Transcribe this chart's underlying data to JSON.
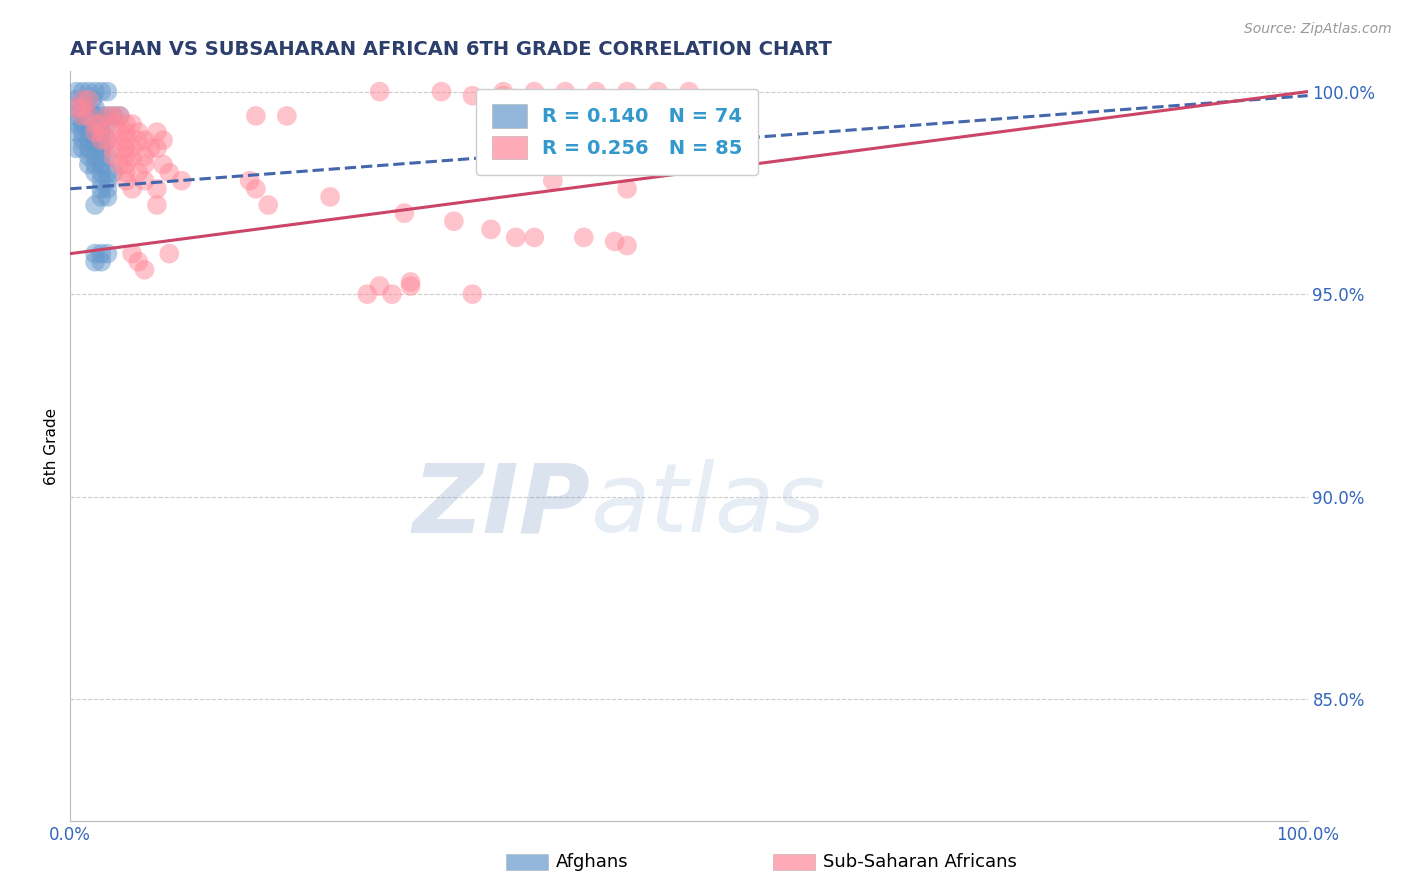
{
  "title": "AFGHAN VS SUBSAHARAN AFRICAN 6TH GRADE CORRELATION CHART",
  "source": "Source: ZipAtlas.com",
  "ylabel": "6th Grade",
  "legend_blue": {
    "R": 0.14,
    "N": 74,
    "label": "Afghans"
  },
  "legend_pink": {
    "R": 0.256,
    "N": 85,
    "label": "Sub-Saharan Africans"
  },
  "ytick_labels": [
    "85.0%",
    "90.0%",
    "95.0%",
    "100.0%"
  ],
  "ytick_positions": [
    0.85,
    0.9,
    0.95,
    1.0
  ],
  "xlim": [
    0.0,
    1.0
  ],
  "ylim": [
    0.82,
    1.005
  ],
  "blue_scatter": [
    [
      0.005,
      1.0
    ],
    [
      0.01,
      1.0
    ],
    [
      0.015,
      1.0
    ],
    [
      0.02,
      1.0
    ],
    [
      0.025,
      1.0
    ],
    [
      0.03,
      1.0
    ],
    [
      0.005,
      0.998
    ],
    [
      0.01,
      0.998
    ],
    [
      0.018,
      0.998
    ],
    [
      0.005,
      0.996
    ],
    [
      0.01,
      0.996
    ],
    [
      0.015,
      0.996
    ],
    [
      0.02,
      0.996
    ],
    [
      0.005,
      0.994
    ],
    [
      0.01,
      0.994
    ],
    [
      0.015,
      0.994
    ],
    [
      0.02,
      0.994
    ],
    [
      0.025,
      0.994
    ],
    [
      0.03,
      0.994
    ],
    [
      0.035,
      0.994
    ],
    [
      0.04,
      0.994
    ],
    [
      0.005,
      0.992
    ],
    [
      0.01,
      0.992
    ],
    [
      0.015,
      0.992
    ],
    [
      0.02,
      0.992
    ],
    [
      0.025,
      0.992
    ],
    [
      0.03,
      0.992
    ],
    [
      0.005,
      0.99
    ],
    [
      0.01,
      0.99
    ],
    [
      0.015,
      0.99
    ],
    [
      0.02,
      0.99
    ],
    [
      0.025,
      0.99
    ],
    [
      0.01,
      0.988
    ],
    [
      0.015,
      0.988
    ],
    [
      0.02,
      0.988
    ],
    [
      0.025,
      0.988
    ],
    [
      0.03,
      0.988
    ],
    [
      0.005,
      0.986
    ],
    [
      0.01,
      0.986
    ],
    [
      0.015,
      0.986
    ],
    [
      0.02,
      0.986
    ],
    [
      0.025,
      0.986
    ],
    [
      0.015,
      0.984
    ],
    [
      0.02,
      0.984
    ],
    [
      0.025,
      0.984
    ],
    [
      0.03,
      0.984
    ],
    [
      0.015,
      0.982
    ],
    [
      0.02,
      0.982
    ],
    [
      0.025,
      0.982
    ],
    [
      0.02,
      0.98
    ],
    [
      0.025,
      0.98
    ],
    [
      0.03,
      0.98
    ],
    [
      0.035,
      0.98
    ],
    [
      0.025,
      0.978
    ],
    [
      0.03,
      0.978
    ],
    [
      0.025,
      0.976
    ],
    [
      0.03,
      0.976
    ],
    [
      0.025,
      0.974
    ],
    [
      0.03,
      0.974
    ],
    [
      0.02,
      0.972
    ],
    [
      0.02,
      0.96
    ],
    [
      0.025,
      0.96
    ],
    [
      0.03,
      0.96
    ],
    [
      0.02,
      0.958
    ],
    [
      0.025,
      0.958
    ]
  ],
  "pink_scatter": [
    [
      0.01,
      0.998
    ],
    [
      0.015,
      0.998
    ],
    [
      0.005,
      0.996
    ],
    [
      0.01,
      0.996
    ],
    [
      0.01,
      0.994
    ],
    [
      0.015,
      0.994
    ],
    [
      0.03,
      0.994
    ],
    [
      0.035,
      0.994
    ],
    [
      0.04,
      0.994
    ],
    [
      0.02,
      0.992
    ],
    [
      0.025,
      0.992
    ],
    [
      0.035,
      0.992
    ],
    [
      0.045,
      0.992
    ],
    [
      0.05,
      0.992
    ],
    [
      0.02,
      0.99
    ],
    [
      0.025,
      0.99
    ],
    [
      0.04,
      0.99
    ],
    [
      0.045,
      0.99
    ],
    [
      0.055,
      0.99
    ],
    [
      0.07,
      0.99
    ],
    [
      0.025,
      0.988
    ],
    [
      0.03,
      0.988
    ],
    [
      0.04,
      0.988
    ],
    [
      0.045,
      0.988
    ],
    [
      0.055,
      0.988
    ],
    [
      0.06,
      0.988
    ],
    [
      0.075,
      0.988
    ],
    [
      0.035,
      0.986
    ],
    [
      0.045,
      0.986
    ],
    [
      0.05,
      0.986
    ],
    [
      0.065,
      0.986
    ],
    [
      0.07,
      0.986
    ],
    [
      0.035,
      0.984
    ],
    [
      0.045,
      0.984
    ],
    [
      0.05,
      0.984
    ],
    [
      0.06,
      0.984
    ],
    [
      0.04,
      0.982
    ],
    [
      0.045,
      0.982
    ],
    [
      0.06,
      0.982
    ],
    [
      0.075,
      0.982
    ],
    [
      0.045,
      0.98
    ],
    [
      0.055,
      0.98
    ],
    [
      0.08,
      0.98
    ],
    [
      0.045,
      0.978
    ],
    [
      0.06,
      0.978
    ],
    [
      0.09,
      0.978
    ],
    [
      0.145,
      0.978
    ],
    [
      0.05,
      0.976
    ],
    [
      0.07,
      0.976
    ],
    [
      0.15,
      0.976
    ],
    [
      0.21,
      0.974
    ],
    [
      0.07,
      0.972
    ],
    [
      0.16,
      0.972
    ],
    [
      0.27,
      0.97
    ],
    [
      0.31,
      0.968
    ],
    [
      0.34,
      0.966
    ],
    [
      0.36,
      0.964
    ],
    [
      0.375,
      0.964
    ],
    [
      0.415,
      0.964
    ],
    [
      0.44,
      0.963
    ],
    [
      0.45,
      0.962
    ],
    [
      0.05,
      0.96
    ],
    [
      0.08,
      0.96
    ],
    [
      0.055,
      0.958
    ],
    [
      0.06,
      0.956
    ],
    [
      0.25,
      0.952
    ],
    [
      0.275,
      0.952
    ],
    [
      0.325,
      0.95
    ],
    [
      0.26,
      0.95
    ],
    [
      0.24,
      0.95
    ],
    [
      0.25,
      1.0
    ],
    [
      0.3,
      1.0
    ],
    [
      0.35,
      1.0
    ],
    [
      0.375,
      1.0
    ],
    [
      0.4,
      1.0
    ],
    [
      0.425,
      1.0
    ],
    [
      0.45,
      1.0
    ],
    [
      0.475,
      1.0
    ],
    [
      0.5,
      1.0
    ],
    [
      0.325,
      0.999
    ],
    [
      0.35,
      0.999
    ],
    [
      0.15,
      0.994
    ],
    [
      0.175,
      0.994
    ],
    [
      0.39,
      0.992
    ],
    [
      0.4,
      0.99
    ],
    [
      0.46,
      0.988
    ],
    [
      0.475,
      0.986
    ],
    [
      0.39,
      0.978
    ],
    [
      0.45,
      0.976
    ],
    [
      0.275,
      0.953
    ]
  ],
  "blue_line": [
    [
      0.0,
      0.976
    ],
    [
      1.0,
      0.999
    ]
  ],
  "pink_line": [
    [
      0.0,
      0.96
    ],
    [
      1.0,
      1.0
    ]
  ],
  "title_color": "#2c3e6b",
  "blue_color": "#6699cc",
  "pink_color": "#ff8899",
  "blue_line_color": "#4466aa",
  "pink_line_color": "#cc4466",
  "legend_R_color": "#3399cc",
  "grid_color": "#cccccc",
  "watermark_color": "#c8d8ec",
  "axis_label_color": "#3366bb",
  "title_fontsize": 14,
  "tick_fontsize": 12,
  "ylabel_fontsize": 11,
  "source_fontsize": 10
}
